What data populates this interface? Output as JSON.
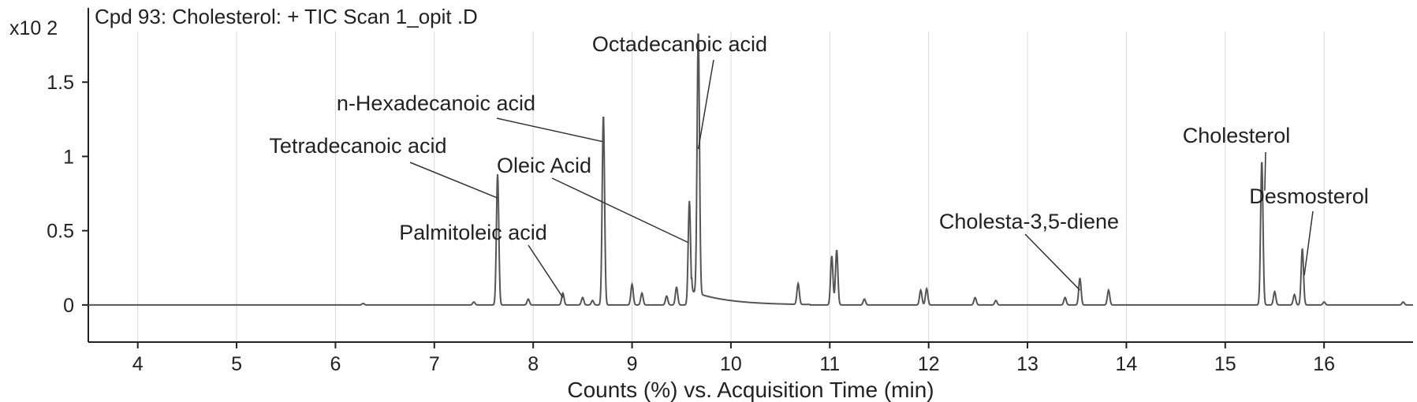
{
  "chart_data": {
    "type": "line",
    "title": "Cpd 93: Cholesterol: + TIC Scan 1_opit .D",
    "y_multiplier": "x10 2",
    "xlabel": "Counts (%) vs. Acquisition Time (min)",
    "ylabel": "",
    "xlim": [
      3.5,
      16.9
    ],
    "ylim": [
      -0.25,
      2.0
    ],
    "x_ticks": [
      "4",
      "5",
      "6",
      "7",
      "8",
      "9",
      "10",
      "11",
      "12",
      "13",
      "14",
      "15",
      "16"
    ],
    "y_ticks": [
      "0",
      "0.5",
      "1",
      "1.5"
    ],
    "grid": "vertical",
    "series": [
      {
        "color": "#555555",
        "baseline": 0.0,
        "peaks": [
          {
            "x": 6.28,
            "y": 0.01
          },
          {
            "x": 7.4,
            "y": 0.02
          },
          {
            "x": 7.64,
            "y": 0.88
          },
          {
            "x": 7.95,
            "y": 0.04
          },
          {
            "x": 8.3,
            "y": 0.08
          },
          {
            "x": 8.5,
            "y": 0.05
          },
          {
            "x": 8.6,
            "y": 0.03
          },
          {
            "x": 8.71,
            "y": 1.28
          },
          {
            "x": 9.0,
            "y": 0.14
          },
          {
            "x": 9.1,
            "y": 0.08
          },
          {
            "x": 9.35,
            "y": 0.06
          },
          {
            "x": 9.45,
            "y": 0.12
          },
          {
            "x": 9.58,
            "y": 0.7
          },
          {
            "x": 9.67,
            "y": 1.77
          },
          {
            "x": 10.68,
            "y": 0.14
          },
          {
            "x": 11.02,
            "y": 0.33
          },
          {
            "x": 11.07,
            "y": 0.37
          },
          {
            "x": 11.35,
            "y": 0.04
          },
          {
            "x": 11.92,
            "y": 0.1
          },
          {
            "x": 11.98,
            "y": 0.11
          },
          {
            "x": 12.47,
            "y": 0.05
          },
          {
            "x": 12.68,
            "y": 0.03
          },
          {
            "x": 13.38,
            "y": 0.05
          },
          {
            "x": 13.53,
            "y": 0.18
          },
          {
            "x": 13.82,
            "y": 0.1
          },
          {
            "x": 15.37,
            "y": 0.97
          },
          {
            "x": 15.5,
            "y": 0.09
          },
          {
            "x": 15.7,
            "y": 0.07
          },
          {
            "x": 15.78,
            "y": 0.38
          },
          {
            "x": 16.0,
            "y": 0.02
          },
          {
            "x": 16.8,
            "y": 0.02
          }
        ]
      }
    ],
    "annotations": [
      {
        "label": "Octadecanoic acid",
        "peak_x": 9.67,
        "peak_y": 1.05,
        "color": "#222222"
      },
      {
        "label": "n-Hexadecanoic acid",
        "peak_x": 8.7,
        "peak_y": 1.1,
        "color": "#222222"
      },
      {
        "label": "Tetradecanoic acid",
        "peak_x": 7.64,
        "peak_y": 0.72,
        "color": "#222222"
      },
      {
        "label": "Oleic Acid",
        "peak_x": 9.57,
        "peak_y": 0.42,
        "color": "#222222"
      },
      {
        "label": "Palmitoleic acid",
        "peak_x": 8.3,
        "peak_y": 0.05,
        "color": "#222222"
      },
      {
        "label": "Cholesta-3,5-diene",
        "peak_x": 13.53,
        "peak_y": 0.1,
        "color": "#222222"
      },
      {
        "label": "Cholesterol",
        "peak_x": 15.4,
        "peak_y": 0.77,
        "color": "#8a8a8a"
      },
      {
        "label": "Desmosterol",
        "peak_x": 15.8,
        "peak_y": 0.2,
        "color": "#222222"
      }
    ]
  }
}
